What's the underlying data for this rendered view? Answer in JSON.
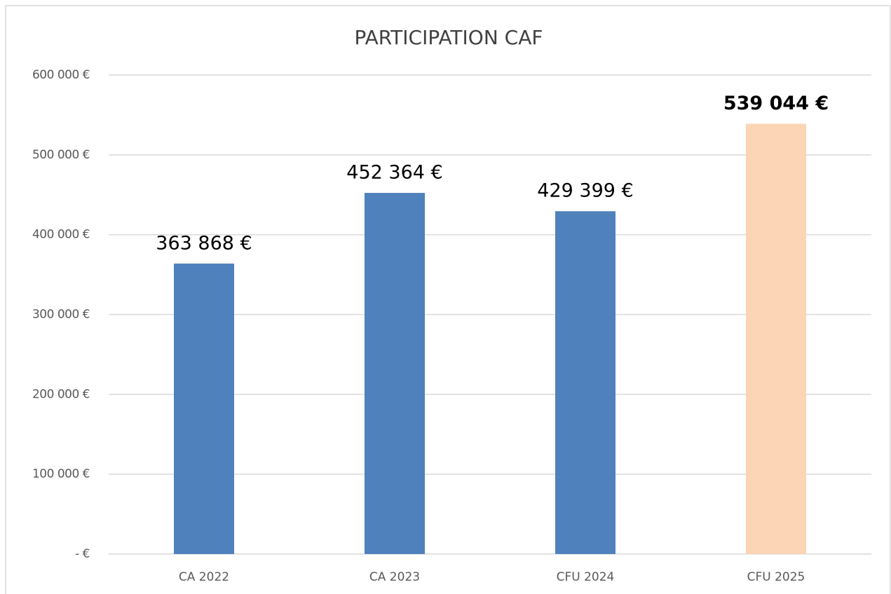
{
  "chart_data": {
    "type": "bar",
    "title": "PARTICIPATION CAF",
    "categories": [
      "CA 2022",
      "CA 2023",
      "CFU 2024",
      "CFU 2025"
    ],
    "values": [
      363868,
      452364,
      429399,
      539044
    ],
    "value_labels": [
      "363 868 €",
      "452 364 €",
      "429 399 €",
      "539 044 €"
    ],
    "value_label_bold": [
      false,
      false,
      false,
      true
    ],
    "colors": [
      "#4f81bd",
      "#4f81bd",
      "#4f81bd",
      "#fbd5b5"
    ],
    "ylim": [
      0,
      600000
    ],
    "yticks": [
      {
        "value": 0,
        "label": "-  €"
      },
      {
        "value": 100000,
        "label": "100 000 €"
      },
      {
        "value": 200000,
        "label": "200 000 €"
      },
      {
        "value": 300000,
        "label": "300 000 €"
      },
      {
        "value": 400000,
        "label": "400 000 €"
      },
      {
        "value": 500000,
        "label": "500 000 €"
      },
      {
        "value": 600000,
        "label": "600 000 €"
      }
    ],
    "grid": true
  }
}
